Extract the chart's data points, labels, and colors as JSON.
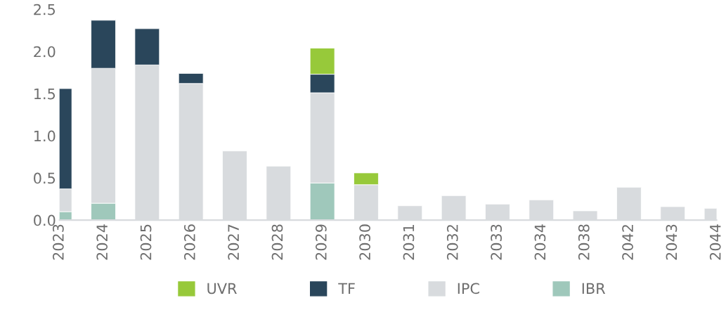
{
  "chart_data": {
    "type": "bar",
    "stacked": true,
    "categories": [
      "2023",
      "2024",
      "2025",
      "2026",
      "2027",
      "2028",
      "2029",
      "2030",
      "2031",
      "2032",
      "2033",
      "2034",
      "2038",
      "2042",
      "2043",
      "2044"
    ],
    "series": [
      {
        "name": "IBR",
        "color": "#9fc8bb",
        "values": [
          0.1,
          0.2,
          null,
          null,
          null,
          null,
          0.44,
          null,
          null,
          null,
          null,
          null,
          null,
          null,
          null,
          null
        ]
      },
      {
        "name": "IPC",
        "color": "#d8dbde",
        "values": [
          0.27,
          1.6,
          1.84,
          1.62,
          0.82,
          0.64,
          1.07,
          0.42,
          0.17,
          0.29,
          0.19,
          0.24,
          0.11,
          0.39,
          0.16,
          0.14
        ]
      },
      {
        "name": "TF",
        "color": "#2a465b",
        "values": [
          1.19,
          0.57,
          0.43,
          0.12,
          null,
          null,
          0.22,
          null,
          null,
          null,
          null,
          null,
          null,
          null,
          null,
          null
        ]
      },
      {
        "name": "UVR",
        "color": "#97c93a",
        "values": [
          null,
          null,
          null,
          null,
          null,
          null,
          0.31,
          0.14,
          null,
          null,
          null,
          null,
          null,
          null,
          null,
          null
        ]
      }
    ],
    "ylim": [
      0,
      2.5
    ],
    "yticks": [
      {
        "value": 0,
        "label": "0.0"
      },
      {
        "value": 0.5,
        "label": "0.5"
      },
      {
        "value": 1,
        "label": "1.0"
      },
      {
        "value": 1.5,
        "label": "1.5"
      },
      {
        "value": 2,
        "label": "2.0"
      },
      {
        "value": 2.5,
        "label": "2.5"
      }
    ],
    "grid": false,
    "legend": "bottom"
  }
}
